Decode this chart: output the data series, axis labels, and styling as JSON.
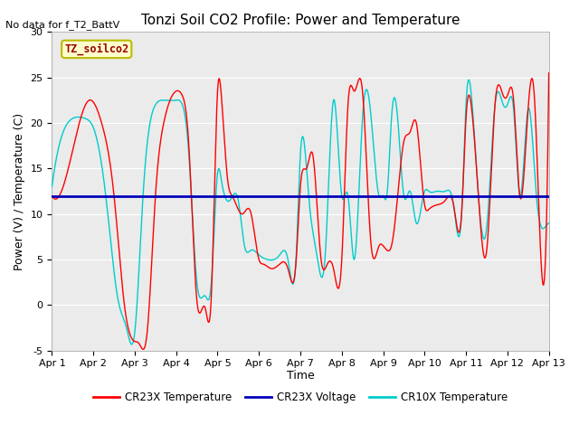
{
  "title": "Tonzi Soil CO2 Profile: Power and Temperature",
  "no_data_text": "No data for f_T2_BattV",
  "legend_label": "TZ_soilco2",
  "ylabel": "Power (V) / Temperature (C)",
  "xlabel": "Time",
  "ylim": [
    -5,
    30
  ],
  "xlim": [
    0,
    12
  ],
  "xtick_labels": [
    "Apr 1",
    "Apr 2",
    "Apr 3",
    "Apr 4",
    "Apr 5",
    "Apr 6",
    "Apr 7",
    "Apr 8",
    "Apr 9",
    "Apr 10",
    "Apr 11",
    "Apr 12",
    "Apr 13"
  ],
  "ytick_values": [
    -5,
    0,
    5,
    10,
    15,
    20,
    25,
    30
  ],
  "color_cr23x_temp": "#FF0000",
  "color_cr23x_volt": "#0000BB",
  "color_cr10x_temp": "#00CCCC",
  "voltage_value": 12.0,
  "bg_color": "#EBEBEB",
  "legend_box_facecolor": "#FFFFCC",
  "legend_box_edgecolor": "#BBBB00",
  "title_fontsize": 11,
  "label_fontsize": 9,
  "tick_fontsize": 8,
  "cr23x_x": [
    0.0,
    0.5,
    0.9,
    1.2,
    1.5,
    1.75,
    2.0,
    2.1,
    2.3,
    2.5,
    2.7,
    3.0,
    3.15,
    3.3,
    3.5,
    3.7,
    3.85,
    4.0,
    4.1,
    4.25,
    4.35,
    4.5,
    4.6,
    4.7,
    4.8,
    5.0,
    5.1,
    5.3,
    5.5,
    5.7,
    5.9,
    6.0,
    6.15,
    6.3,
    6.5,
    6.65,
    6.8,
    7.0,
    7.15,
    7.3,
    7.5,
    7.7,
    7.9,
    8.0,
    8.1,
    8.2,
    8.35,
    8.5,
    8.65,
    8.8,
    9.0,
    9.1,
    9.3,
    9.5,
    9.7,
    9.9,
    10.0,
    10.15,
    10.3,
    10.5,
    10.7,
    10.9,
    11.0,
    11.15,
    11.3,
    11.5,
    11.65,
    11.8,
    12.0
  ],
  "cr23x_y": [
    12.0,
    17.0,
    22.5,
    20.0,
    12.0,
    0.0,
    -4.0,
    -4.2,
    -3.0,
    12.0,
    20.0,
    23.5,
    23.0,
    18.0,
    0.5,
    -0.3,
    1.0,
    23.5,
    22.5,
    13.5,
    12.0,
    10.5,
    10.0,
    10.5,
    10.2,
    5.0,
    4.5,
    4.0,
    4.5,
    4.0,
    5.0,
    13.0,
    15.0,
    16.5,
    5.0,
    4.5,
    4.0,
    5.0,
    22.0,
    23.5,
    23.5,
    7.0,
    6.5,
    6.5,
    6.0,
    6.5,
    12.0,
    18.0,
    19.0,
    20.0,
    11.0,
    10.5,
    11.0,
    11.5,
    11.0,
    10.5,
    20.5,
    21.0,
    12.0,
    6.0,
    22.0,
    23.0,
    23.0,
    22.5,
    12.0,
    21.5,
    23.0,
    6.0,
    25.5
  ],
  "cr10x_x": [
    0.0,
    0.2,
    0.5,
    0.8,
    1.0,
    1.3,
    1.6,
    1.8,
    2.0,
    2.2,
    2.5,
    2.7,
    3.0,
    3.15,
    3.3,
    3.5,
    3.7,
    3.85,
    4.0,
    4.1,
    4.3,
    4.5,
    4.65,
    4.8,
    5.0,
    5.2,
    5.5,
    5.7,
    5.9,
    6.0,
    6.2,
    6.4,
    6.6,
    6.8,
    7.0,
    7.15,
    7.3,
    7.5,
    7.7,
    7.9,
    8.0,
    8.1,
    8.2,
    8.35,
    8.5,
    8.65,
    8.8,
    9.0,
    9.1,
    9.3,
    9.5,
    9.7,
    9.9,
    10.0,
    10.15,
    10.3,
    10.5,
    10.7,
    10.9,
    11.0,
    11.15,
    11.3,
    11.5,
    11.7,
    11.9,
    12.0
  ],
  "cr10x_y": [
    13.0,
    18.0,
    20.5,
    20.5,
    19.5,
    12.0,
    0.5,
    -2.5,
    -3.0,
    12.0,
    22.0,
    22.5,
    22.5,
    22.0,
    17.0,
    2.5,
    1.0,
    2.5,
    14.5,
    13.5,
    11.5,
    11.5,
    6.5,
    6.0,
    5.5,
    5.0,
    5.5,
    5.0,
    5.5,
    16.5,
    12.0,
    5.5,
    5.5,
    22.5,
    12.0,
    12.0,
    5.0,
    20.5,
    21.0,
    12.0,
    12.0,
    12.5,
    20.5,
    20.5,
    12.0,
    12.5,
    9.0,
    12.5,
    12.5,
    12.5,
    12.5,
    11.0,
    10.5,
    22.0,
    22.0,
    12.0,
    8.5,
    22.0,
    22.0,
    22.0,
    21.5,
    12.0,
    21.5,
    12.0,
    8.5,
    9.0
  ]
}
